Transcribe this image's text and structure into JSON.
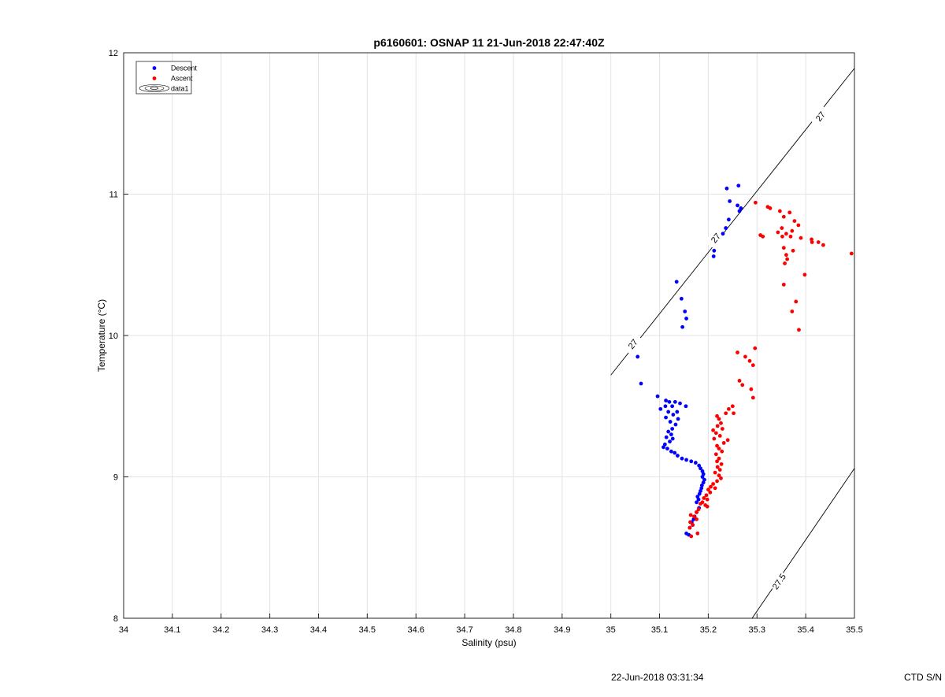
{
  "chart_data": {
    "type": "scatter",
    "title": "p6160601: OSNAP 11 21-Jun-2018 22:47:40Z",
    "xlabel": "Salinity (psu)",
    "ylabel": "Temperature (°C)",
    "xlim": [
      34,
      35.5
    ],
    "ylim": [
      8,
      12
    ],
    "x_ticks": [
      34,
      34.1,
      34.2,
      34.3,
      34.4,
      34.5,
      34.6,
      34.7,
      34.8,
      34.9,
      35,
      35.1,
      35.2,
      35.3,
      35.4,
      35.5
    ],
    "x_tick_labels": [
      "34",
      "34.1",
      "34.2",
      "34.3",
      "34.4",
      "34.5",
      "34.6",
      "34.7",
      "34.8",
      "34.9",
      "35",
      "35.1",
      "35.2",
      "35.3",
      "35.4",
      "35.5"
    ],
    "y_ticks": [
      8,
      9,
      10,
      11,
      12
    ],
    "y_tick_labels": [
      "8",
      "9",
      "10",
      "11",
      "12"
    ],
    "grid": true,
    "legend_placement": "top-left",
    "legend": [
      {
        "label": "Descent",
        "marker": "dot",
        "color": "#0000ff"
      },
      {
        "label": "Ascent",
        "marker": "dot",
        "color": "#ff0000"
      },
      {
        "label": "data1",
        "marker": "contour"
      }
    ],
    "series": [
      {
        "name": "Descent",
        "color": "#0000ff",
        "points": [
          [
            35.262,
            11.06
          ],
          [
            35.238,
            11.04
          ],
          [
            35.244,
            10.95
          ],
          [
            35.26,
            10.92
          ],
          [
            35.267,
            10.9
          ],
          [
            35.264,
            10.88
          ],
          [
            35.242,
            10.82
          ],
          [
            35.236,
            10.76
          ],
          [
            35.23,
            10.72
          ],
          [
            35.212,
            10.6
          ],
          [
            35.211,
            10.56
          ],
          [
            35.135,
            10.38
          ],
          [
            35.145,
            10.26
          ],
          [
            35.152,
            10.17
          ],
          [
            35.155,
            10.12
          ],
          [
            35.147,
            10.06
          ],
          [
            35.055,
            9.85
          ],
          [
            35.062,
            9.66
          ],
          [
            35.096,
            9.57
          ],
          [
            35.113,
            9.54
          ],
          [
            35.12,
            9.53
          ],
          [
            35.132,
            9.53
          ],
          [
            35.142,
            9.52
          ],
          [
            35.112,
            9.5
          ],
          [
            35.126,
            9.5
          ],
          [
            35.154,
            9.5
          ],
          [
            35.102,
            9.48
          ],
          [
            35.118,
            9.46
          ],
          [
            35.136,
            9.46
          ],
          [
            35.128,
            9.44
          ],
          [
            35.113,
            9.42
          ],
          [
            35.138,
            9.41
          ],
          [
            35.122,
            9.39
          ],
          [
            35.133,
            9.37
          ],
          [
            35.126,
            9.34
          ],
          [
            35.118,
            9.32
          ],
          [
            35.124,
            9.3
          ],
          [
            35.114,
            9.28
          ],
          [
            35.127,
            9.27
          ],
          [
            35.121,
            9.25
          ],
          [
            35.111,
            9.23
          ],
          [
            35.108,
            9.21
          ],
          [
            35.116,
            9.2
          ],
          [
            35.124,
            9.18
          ],
          [
            35.131,
            9.17
          ],
          [
            35.137,
            9.15
          ],
          [
            35.146,
            9.13
          ],
          [
            35.155,
            9.12
          ],
          [
            35.165,
            9.11
          ],
          [
            35.174,
            9.1
          ],
          [
            35.181,
            9.08
          ],
          [
            35.184,
            9.06
          ],
          [
            35.188,
            9.04
          ],
          [
            35.19,
            9.02
          ],
          [
            35.188,
            9.0
          ],
          [
            35.192,
            8.98
          ],
          [
            35.19,
            8.96
          ],
          [
            35.187,
            8.94
          ],
          [
            35.186,
            8.92
          ],
          [
            35.184,
            8.9
          ],
          [
            35.182,
            8.88
          ],
          [
            35.178,
            8.86
          ],
          [
            35.18,
            8.84
          ],
          [
            35.176,
            8.82
          ],
          [
            35.181,
            8.78
          ],
          [
            35.176,
            8.75
          ],
          [
            35.172,
            8.72
          ],
          [
            35.17,
            8.7
          ],
          [
            35.166,
            8.68
          ],
          [
            35.168,
            8.66
          ],
          [
            35.162,
            8.64
          ],
          [
            35.155,
            8.6
          ],
          [
            35.16,
            8.59
          ]
        ]
      },
      {
        "name": "Ascent",
        "color": "#ff0000",
        "points": [
          [
            35.297,
            10.94
          ],
          [
            35.322,
            10.91
          ],
          [
            35.327,
            10.9
          ],
          [
            35.347,
            10.88
          ],
          [
            35.367,
            10.87
          ],
          [
            35.355,
            10.84
          ],
          [
            35.377,
            10.81
          ],
          [
            35.385,
            10.78
          ],
          [
            35.351,
            10.76
          ],
          [
            35.372,
            10.74
          ],
          [
            35.343,
            10.73
          ],
          [
            35.36,
            10.72
          ],
          [
            35.307,
            10.71
          ],
          [
            35.312,
            10.7
          ],
          [
            35.352,
            10.7
          ],
          [
            35.369,
            10.7
          ],
          [
            35.39,
            10.69
          ],
          [
            35.412,
            10.68
          ],
          [
            35.413,
            10.66
          ],
          [
            35.426,
            10.66
          ],
          [
            35.436,
            10.64
          ],
          [
            35.355,
            10.62
          ],
          [
            35.374,
            10.6
          ],
          [
            35.36,
            10.57
          ],
          [
            35.494,
            10.58
          ],
          [
            35.362,
            10.54
          ],
          [
            35.357,
            10.51
          ],
          [
            35.398,
            10.43
          ],
          [
            35.355,
            10.36
          ],
          [
            35.38,
            10.24
          ],
          [
            35.372,
            10.17
          ],
          [
            35.386,
            10.04
          ],
          [
            35.296,
            9.91
          ],
          [
            35.26,
            9.88
          ],
          [
            35.276,
            9.85
          ],
          [
            35.285,
            9.82
          ],
          [
            35.292,
            9.79
          ],
          [
            35.264,
            9.68
          ],
          [
            35.27,
            9.65
          ],
          [
            35.288,
            9.62
          ],
          [
            35.292,
            9.56
          ],
          [
            35.25,
            9.5
          ],
          [
            35.242,
            9.48
          ],
          [
            35.252,
            9.45
          ],
          [
            35.236,
            9.45
          ],
          [
            35.218,
            9.43
          ],
          [
            35.222,
            9.41
          ],
          [
            35.226,
            9.38
          ],
          [
            35.219,
            9.36
          ],
          [
            35.229,
            9.34
          ],
          [
            35.21,
            9.33
          ],
          [
            35.216,
            9.31
          ],
          [
            35.224,
            9.29
          ],
          [
            35.212,
            9.27
          ],
          [
            35.24,
            9.26
          ],
          [
            35.232,
            9.24
          ],
          [
            35.218,
            9.22
          ],
          [
            35.222,
            9.2
          ],
          [
            35.228,
            9.18
          ],
          [
            35.216,
            9.16
          ],
          [
            35.222,
            9.13
          ],
          [
            35.218,
            9.11
          ],
          [
            35.227,
            9.09
          ],
          [
            35.219,
            9.07
          ],
          [
            35.224,
            9.05
          ],
          [
            35.214,
            9.03
          ],
          [
            35.222,
            9.01
          ],
          [
            35.226,
            8.99
          ],
          [
            35.218,
            8.97
          ],
          [
            35.21,
            8.95
          ],
          [
            35.205,
            8.93
          ],
          [
            35.214,
            8.92
          ],
          [
            35.2,
            8.91
          ],
          [
            35.204,
            8.89
          ],
          [
            35.196,
            8.87
          ],
          [
            35.191,
            8.85
          ],
          [
            35.198,
            8.84
          ],
          [
            35.188,
            8.82
          ],
          [
            35.184,
            8.81
          ],
          [
            35.194,
            8.8
          ],
          [
            35.198,
            8.79
          ],
          [
            35.18,
            8.77
          ],
          [
            35.176,
            8.75
          ],
          [
            35.164,
            8.73
          ],
          [
            35.171,
            8.72
          ],
          [
            35.176,
            8.7
          ],
          [
            35.163,
            8.68
          ],
          [
            35.168,
            8.66
          ],
          [
            35.162,
            8.64
          ],
          [
            35.178,
            8.6
          ],
          [
            35.165,
            8.58
          ]
        ]
      }
    ],
    "contours": [
      {
        "label": "27",
        "line": [
          [
            35.0,
            9.72
          ],
          [
            35.5,
            11.89
          ]
        ],
        "labels_at": [
          [
            35.045,
            9.94
          ],
          [
            35.215,
            10.69
          ],
          [
            35.43,
            11.55
          ]
        ]
      },
      {
        "label": "27.5",
        "line": [
          [
            35.29,
            8.0
          ],
          [
            35.5,
            9.06
          ]
        ],
        "labels_at": [
          [
            35.345,
            8.26
          ]
        ]
      }
    ]
  },
  "footer": {
    "timestamp": "22-Jun-2018 03:31:34",
    "ctd": "CTD S/N"
  }
}
